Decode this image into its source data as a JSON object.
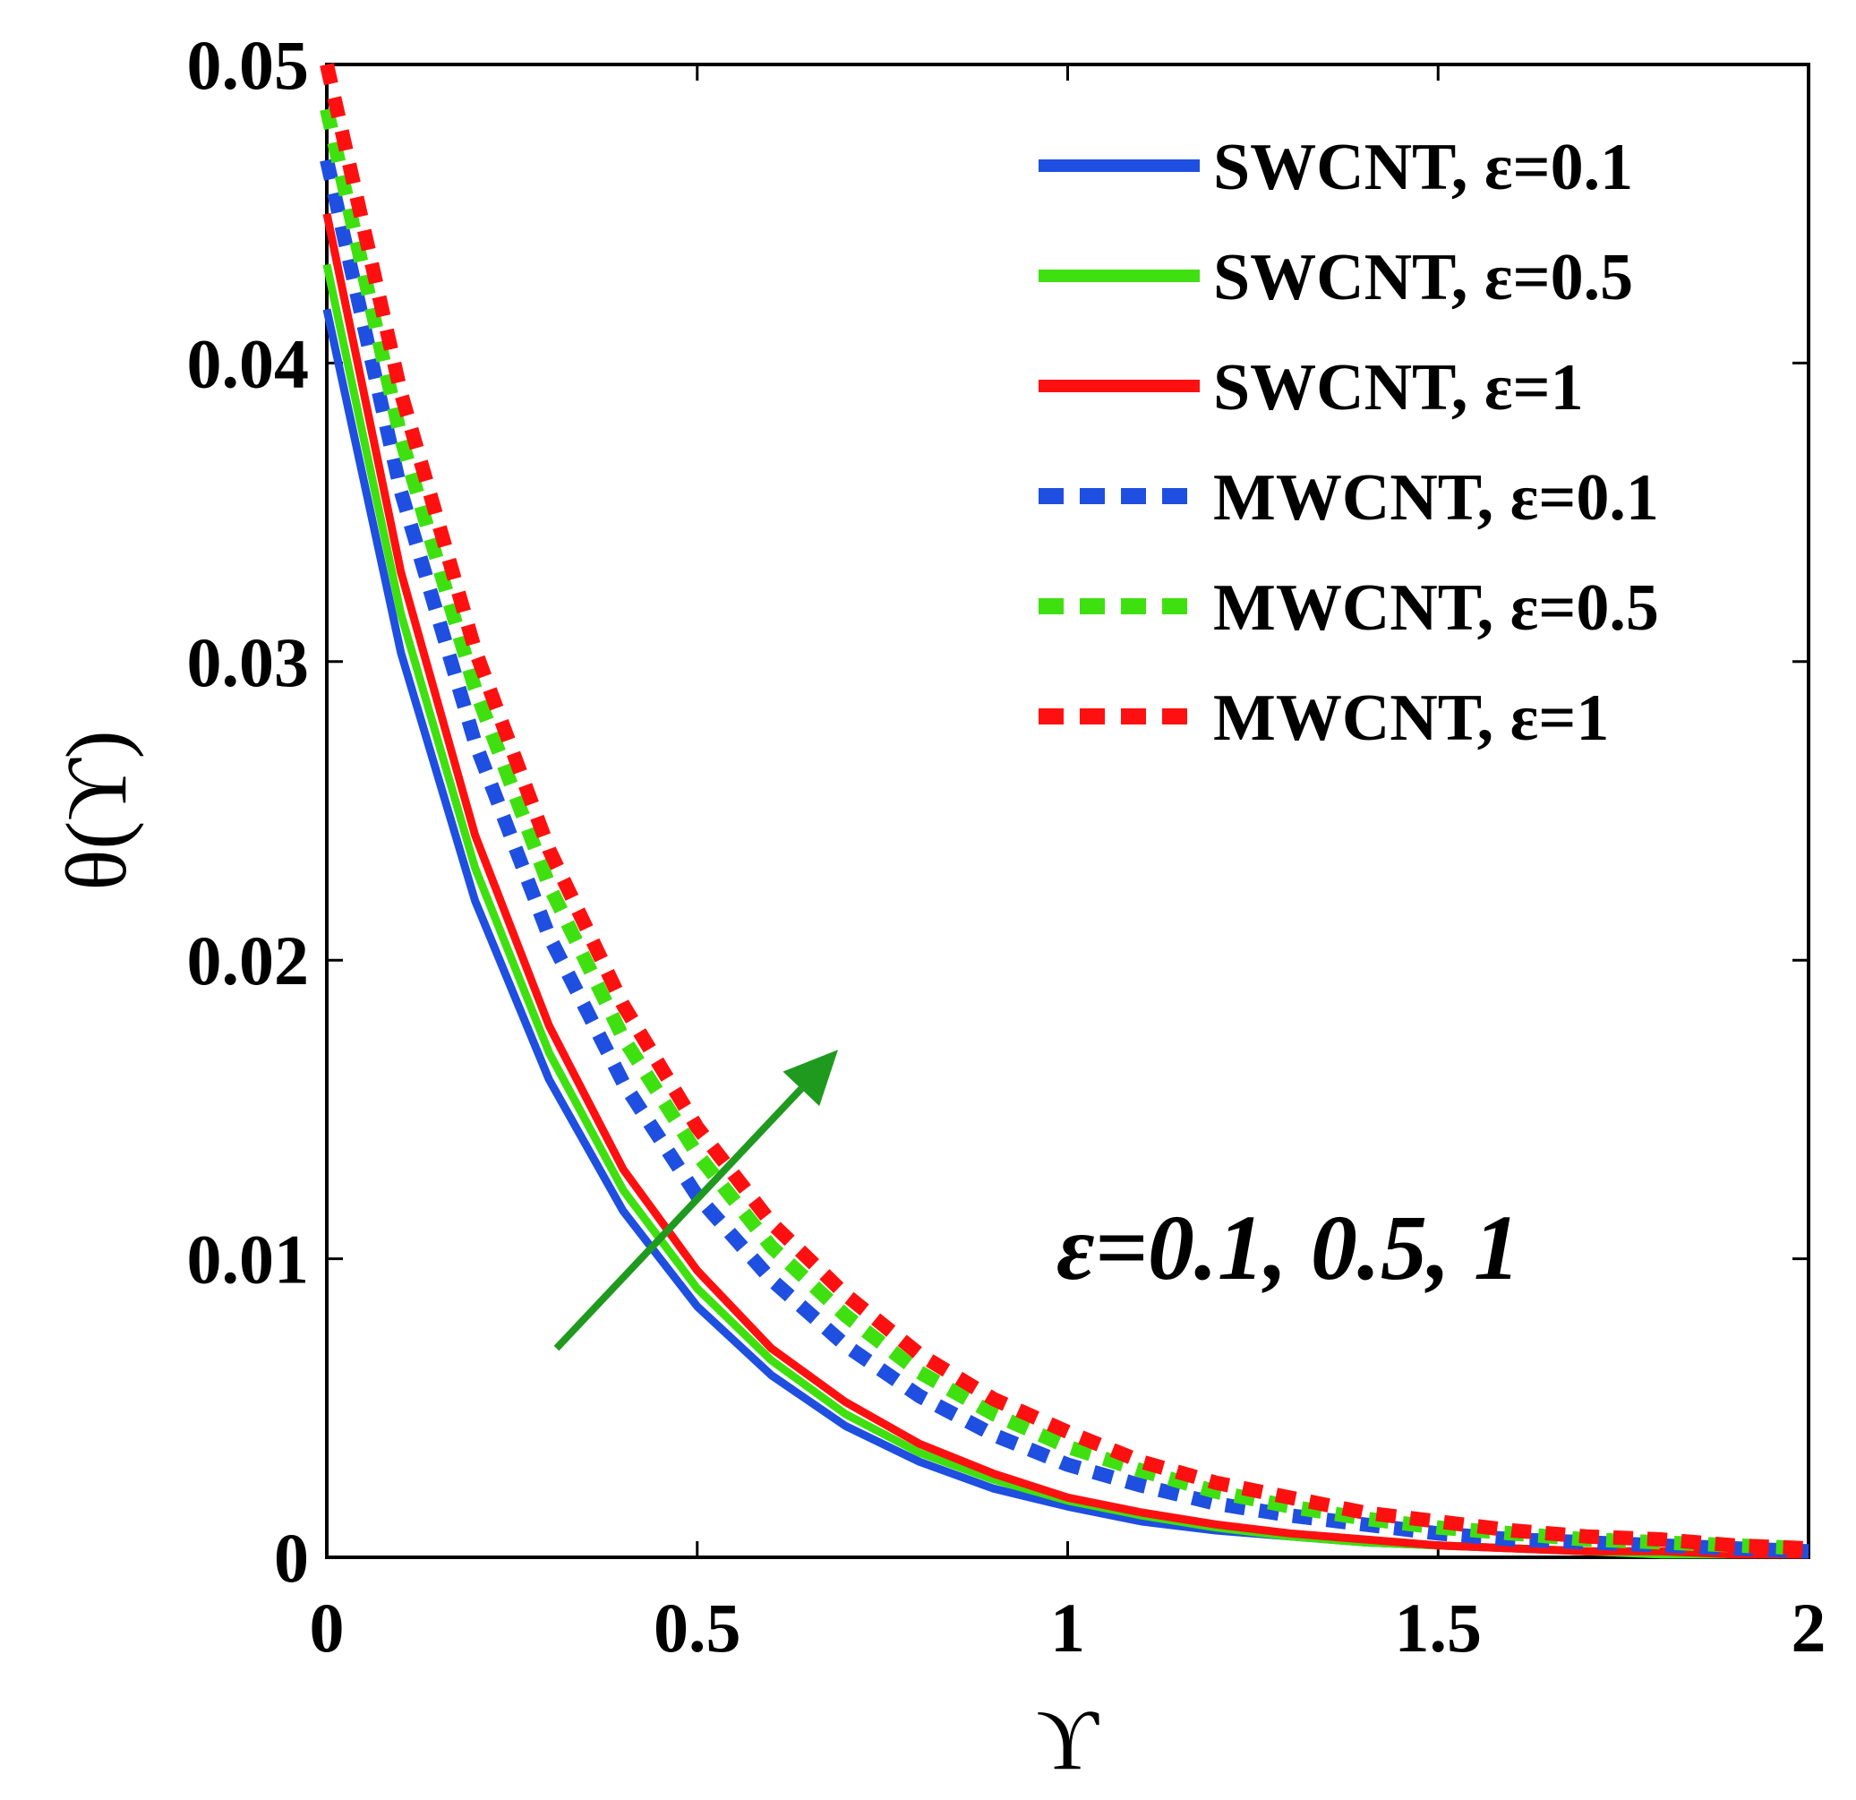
{
  "chart_data": {
    "type": "line",
    "xlabel": "ϒ",
    "ylabel": "θ(ϒ)",
    "xlim": [
      0,
      2
    ],
    "ylim": [
      0,
      0.05
    ],
    "xticks": [
      0,
      0.5,
      1,
      1.5,
      2
    ],
    "xtick_labels": [
      "0",
      "0.5",
      "1",
      "1.5",
      "2"
    ],
    "yticks": [
      0,
      0.01,
      0.02,
      0.03,
      0.04,
      0.05
    ],
    "ytick_labels": [
      "0",
      "0.01",
      "0.02",
      "0.03",
      "0.04",
      "0.05"
    ],
    "grid": false,
    "legend_position": "top-right",
    "x": [
      0,
      0.1,
      0.2,
      0.3,
      0.4,
      0.5,
      0.6,
      0.7,
      0.8,
      0.9,
      1.0,
      1.1,
      1.2,
      1.3,
      1.4,
      1.5,
      1.6,
      1.7,
      1.8,
      1.9,
      2.0
    ],
    "series": [
      {
        "name": "SWCNT, ε=0.1",
        "color": "#1f4fe0",
        "style": "solid",
        "values": [
          0.0418,
          0.0303,
          0.022,
          0.016,
          0.0116,
          0.0084,
          0.0061,
          0.0044,
          0.0032,
          0.0023,
          0.0017,
          0.0012,
          0.0009,
          0.0007,
          0.0005,
          0.0004,
          0.0003,
          0.0002,
          0.0001,
          0.0001,
          0.0001
        ]
      },
      {
        "name": "SWCNT, ε=0.5",
        "color": "#3fe00f",
        "style": "solid",
        "values": [
          0.0433,
          0.0316,
          0.0231,
          0.0169,
          0.0123,
          0.009,
          0.0066,
          0.0048,
          0.0035,
          0.0026,
          0.0019,
          0.0014,
          0.001,
          0.0007,
          0.0005,
          0.0004,
          0.0003,
          0.0002,
          0.0001,
          0.0001,
          0.0001
        ]
      },
      {
        "name": "SWCNT, ε=1",
        "color": "#ff1010",
        "style": "solid",
        "values": [
          0.045,
          0.033,
          0.0242,
          0.0178,
          0.013,
          0.0096,
          0.007,
          0.0052,
          0.0038,
          0.0028,
          0.002,
          0.0015,
          0.0011,
          0.0008,
          0.0006,
          0.0004,
          0.0003,
          0.0002,
          0.0002,
          0.0001,
          0.0001
        ]
      },
      {
        "name": "MWCNT, ε=0.1",
        "color": "#1f4fe0",
        "style": "dashed",
        "values": [
          0.0468,
          0.0357,
          0.0273,
          0.0208,
          0.0159,
          0.0121,
          0.0093,
          0.0071,
          0.0054,
          0.0041,
          0.0031,
          0.0024,
          0.0018,
          0.0014,
          0.0011,
          0.0008,
          0.0006,
          0.0005,
          0.0004,
          0.0003,
          0.0002
        ]
      },
      {
        "name": "MWCNT, ε=0.5",
        "color": "#3fe00f",
        "style": "dashed",
        "values": [
          0.0485,
          0.0375,
          0.0291,
          0.0225,
          0.0174,
          0.0135,
          0.0104,
          0.0081,
          0.0062,
          0.0048,
          0.0037,
          0.0029,
          0.0022,
          0.0017,
          0.0013,
          0.001,
          0.0008,
          0.0006,
          0.0005,
          0.0004,
          0.0003
        ]
      },
      {
        "name": "MWCNT, ε=1",
        "color": "#ff1010",
        "style": "dashed",
        "values": [
          0.05,
          0.039,
          0.0304,
          0.0237,
          0.0185,
          0.0144,
          0.0112,
          0.0088,
          0.0068,
          0.0053,
          0.0042,
          0.0032,
          0.0025,
          0.002,
          0.0015,
          0.0012,
          0.0009,
          0.0007,
          0.0006,
          0.0004,
          0.0003
        ]
      }
    ],
    "annotation": {
      "text": "ε=0.1, 0.5, 1",
      "arrow_color": "#1f9a1f",
      "arrow_from": [
        0.31,
        0.007
      ],
      "arrow_to": [
        0.69,
        0.017
      ]
    }
  }
}
